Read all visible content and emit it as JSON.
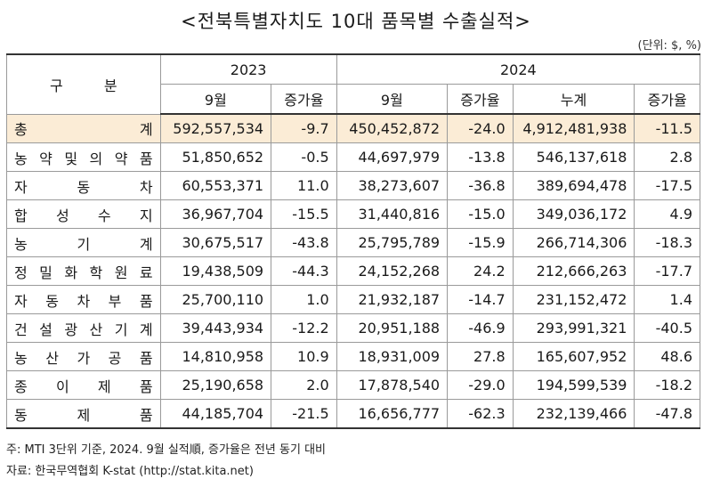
{
  "title": "<전북특별자치도 10대 품목별 수출실적>",
  "unit": "(단위: $, %)",
  "header": {
    "category": "구 분",
    "year_2023": "2023",
    "year_2024": "2024",
    "month_2023": "9월",
    "growth_2023": "증가율",
    "month_2024": "9월",
    "growth_2024": "증가율",
    "cumulative": "누계",
    "growth_cum": "증가율"
  },
  "rows": [
    {
      "name": "총계",
      "v2023": "592,557,534",
      "g2023": "-9.7",
      "v2024": "450,452,872",
      "g2024": "-24.0",
      "cum": "4,912,481,938",
      "gcum": "-11.5"
    },
    {
      "name": "농약및의약품",
      "v2023": "51,850,652",
      "g2023": "-0.5",
      "v2024": "44,697,979",
      "g2024": "-13.8",
      "cum": "546,137,618",
      "gcum": "2.8"
    },
    {
      "name": "자동차",
      "v2023": "60,553,371",
      "g2023": "11.0",
      "v2024": "38,273,607",
      "g2024": "-36.8",
      "cum": "389,694,478",
      "gcum": "-17.5"
    },
    {
      "name": "합성수지",
      "v2023": "36,967,704",
      "g2023": "-15.5",
      "v2024": "31,440,816",
      "g2024": "-15.0",
      "cum": "349,036,172",
      "gcum": "4.9"
    },
    {
      "name": "농기계",
      "v2023": "30,675,517",
      "g2023": "-43.8",
      "v2024": "25,795,789",
      "g2024": "-15.9",
      "cum": "266,714,306",
      "gcum": "-18.3"
    },
    {
      "name": "정밀화학원료",
      "v2023": "19,438,509",
      "g2023": "-44.3",
      "v2024": "24,152,268",
      "g2024": "24.2",
      "cum": "212,666,263",
      "gcum": "-17.7"
    },
    {
      "name": "자동차부품",
      "v2023": "25,700,110",
      "g2023": "1.0",
      "v2024": "21,932,187",
      "g2024": "-14.7",
      "cum": "231,152,472",
      "gcum": "1.4"
    },
    {
      "name": "건설광산기계",
      "v2023": "39,443,934",
      "g2023": "-12.2",
      "v2024": "20,951,188",
      "g2024": "-46.9",
      "cum": "293,991,321",
      "gcum": "-40.5"
    },
    {
      "name": "농산가공품",
      "v2023": "14,810,958",
      "g2023": "10.9",
      "v2024": "18,931,009",
      "g2024": "27.8",
      "cum": "165,607,952",
      "gcum": "48.6"
    },
    {
      "name": "종이제품",
      "v2023": "25,190,658",
      "g2023": "2.0",
      "v2024": "17,878,540",
      "g2024": "-29.0",
      "cum": "194,599,539",
      "gcum": "-18.2"
    },
    {
      "name": "동제품",
      "v2023": "44,185,704",
      "g2023": "-21.5",
      "v2024": "16,656,777",
      "g2024": "-62.3",
      "cum": "232,139,466",
      "gcum": "-47.8"
    }
  ],
  "notes": {
    "line1": "주: MTI 3단위 기준, 2024. 9월 실적順, 증가율은 전년 동기 대비",
    "line2": "자료: 한국무역협회 K-stat (http://stat.kita.net)"
  },
  "colors": {
    "total_row_bg": "#fbecd6",
    "border": "#9a9a9a"
  }
}
